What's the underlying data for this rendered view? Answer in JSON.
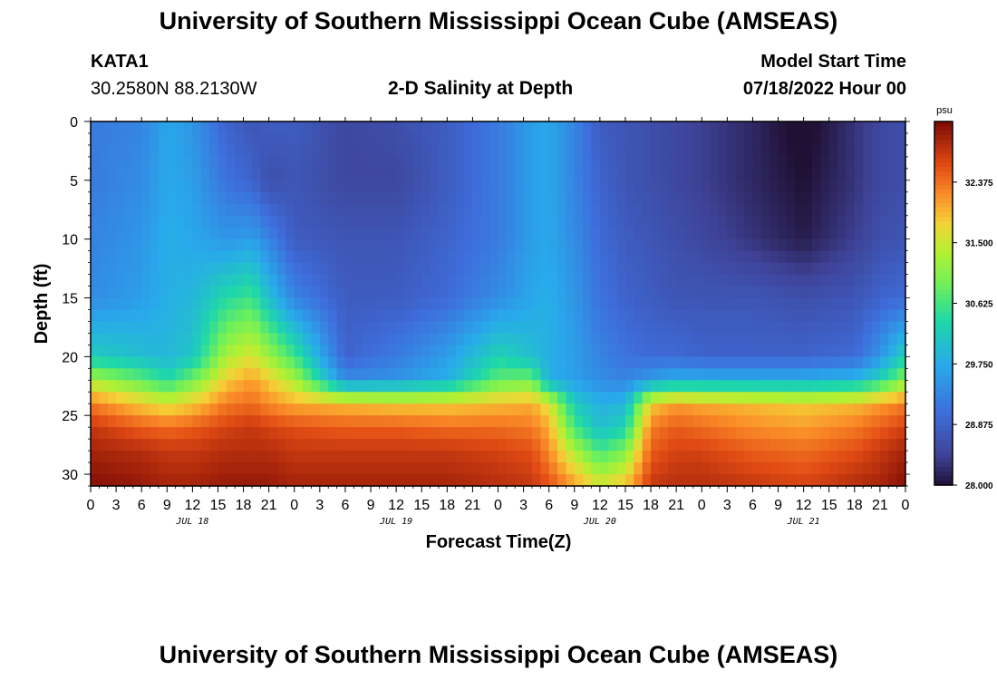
{
  "header": {
    "title": "University of Southern Mississippi Ocean Cube (AMSEAS)",
    "station": "KATA1",
    "coords": "30.2580N  88.2130W",
    "product": "2-D Salinity at Depth",
    "start_label": "Model Start Time",
    "start_value": "07/18/2022 Hour 00"
  },
  "footer": {
    "title": "University of Southern Mississippi Ocean Cube (AMSEAS)"
  },
  "chart_data": {
    "type": "heatmap",
    "title": "2-D Salinity at Depth",
    "xlabel": "Forecast Time(Z)",
    "ylabel": "Depth (ft)",
    "x_range_hours": [
      0,
      96
    ],
    "y_range_ft": [
      0,
      31
    ],
    "x_tick_labels": [
      "0",
      "3",
      "6",
      "9",
      "12",
      "15",
      "18",
      "21",
      "0",
      "3",
      "6",
      "9",
      "12",
      "15",
      "18",
      "21",
      "0",
      "3",
      "6",
      "9",
      "12",
      "15",
      "18",
      "21",
      "0",
      "3",
      "6",
      "9",
      "12",
      "15",
      "18",
      "21",
      "0"
    ],
    "date_labels": [
      {
        "hour": 12,
        "label": "JUL 18"
      },
      {
        "hour": 36,
        "label": "JUL 19"
      },
      {
        "hour": 60,
        "label": "JUL 20"
      },
      {
        "hour": 84,
        "label": "JUL 21"
      }
    ],
    "y_ticks": [
      0,
      5,
      10,
      15,
      20,
      25,
      30
    ],
    "colorbar": {
      "unit": "psu",
      "min": 28.0,
      "max": 33.25,
      "ticks": [
        "28.000",
        "28.875",
        "29.750",
        "30.625",
        "31.500",
        "32.375"
      ]
    },
    "approx_values_note": "salinity psu, rows = depth 0,5,10,15,20,22,24,26,28,31 ft; cols = forecast hour",
    "depth_levels": [
      0,
      5,
      10,
      15,
      20,
      22,
      24,
      26,
      28,
      31
    ],
    "hours": [
      0,
      6,
      9,
      12,
      16,
      19,
      21,
      24,
      30,
      36,
      42,
      48,
      52,
      54,
      57,
      60,
      63,
      66,
      69,
      72,
      78,
      84,
      90,
      93,
      96
    ],
    "values": [
      [
        29.2,
        29.3,
        29.7,
        29.5,
        28.9,
        28.7,
        28.8,
        28.8,
        28.5,
        28.6,
        28.8,
        29.2,
        29.6,
        29.7,
        29.3,
        28.8,
        28.7,
        28.6,
        28.5,
        28.4,
        28.2,
        27.9,
        28.3,
        28.5,
        28.6
      ],
      [
        29.2,
        29.4,
        29.7,
        29.6,
        29.1,
        28.9,
        28.6,
        28.7,
        28.5,
        28.5,
        28.8,
        29.2,
        29.6,
        29.7,
        29.3,
        28.9,
        28.7,
        28.6,
        28.5,
        28.4,
        28.2,
        28.0,
        28.3,
        28.5,
        28.6
      ],
      [
        29.3,
        29.5,
        29.8,
        29.7,
        29.5,
        29.6,
        29.3,
        28.8,
        28.7,
        28.7,
        28.9,
        29.2,
        29.6,
        29.7,
        29.4,
        29.0,
        28.8,
        28.7,
        28.6,
        28.5,
        28.3,
        28.1,
        28.4,
        28.6,
        28.7
      ],
      [
        29.4,
        29.6,
        29.8,
        29.9,
        30.4,
        30.6,
        30.0,
        29.3,
        28.8,
        28.8,
        29.0,
        29.4,
        29.7,
        29.8,
        29.5,
        29.1,
        28.9,
        28.8,
        28.7,
        28.7,
        28.7,
        28.6,
        28.7,
        28.9,
        29.0
      ],
      [
        30.2,
        30.0,
        29.9,
        30.1,
        31.3,
        31.6,
        31.2,
        30.6,
        28.9,
        29.2,
        29.6,
        30.3,
        30.0,
        29.8,
        29.6,
        29.3,
        29.1,
        29.0,
        29.0,
        28.9,
        28.9,
        28.9,
        29.0,
        29.5,
        30.3
      ],
      [
        31.3,
        30.8,
        30.4,
        30.9,
        31.8,
        32.1,
        31.8,
        31.3,
        29.4,
        29.5,
        29.8,
        30.8,
        30.9,
        29.8,
        29.6,
        29.4,
        29.3,
        29.6,
        29.8,
        29.8,
        29.8,
        29.8,
        29.9,
        30.3,
        31.1
      ],
      [
        32.3,
        31.8,
        31.6,
        31.8,
        32.3,
        32.4,
        32.2,
        32.0,
        31.9,
        31.8,
        31.8,
        31.9,
        32.0,
        31.6,
        30.2,
        29.8,
        29.9,
        31.8,
        32.1,
        32.0,
        31.9,
        31.8,
        31.9,
        32.1,
        32.3
      ],
      [
        32.8,
        32.5,
        32.4,
        32.5,
        32.7,
        32.8,
        32.7,
        32.6,
        32.5,
        32.5,
        32.4,
        32.4,
        32.3,
        32.0,
        30.6,
        30.0,
        30.3,
        32.3,
        32.5,
        32.4,
        32.2,
        32.1,
        32.3,
        32.5,
        32.7
      ],
      [
        33.0,
        32.9,
        32.8,
        32.8,
        32.9,
        32.9,
        32.9,
        32.8,
        32.8,
        32.8,
        32.8,
        32.7,
        32.6,
        32.2,
        31.3,
        30.6,
        31.0,
        32.5,
        32.7,
        32.7,
        32.5,
        32.4,
        32.6,
        32.8,
        33.0
      ],
      [
        33.2,
        33.1,
        33.0,
        33.0,
        33.1,
        33.1,
        33.1,
        33.0,
        33.0,
        33.0,
        33.0,
        32.9,
        32.8,
        32.6,
        32.1,
        31.6,
        31.9,
        32.8,
        32.9,
        32.9,
        32.8,
        32.7,
        32.9,
        33.0,
        33.2
      ]
    ]
  }
}
